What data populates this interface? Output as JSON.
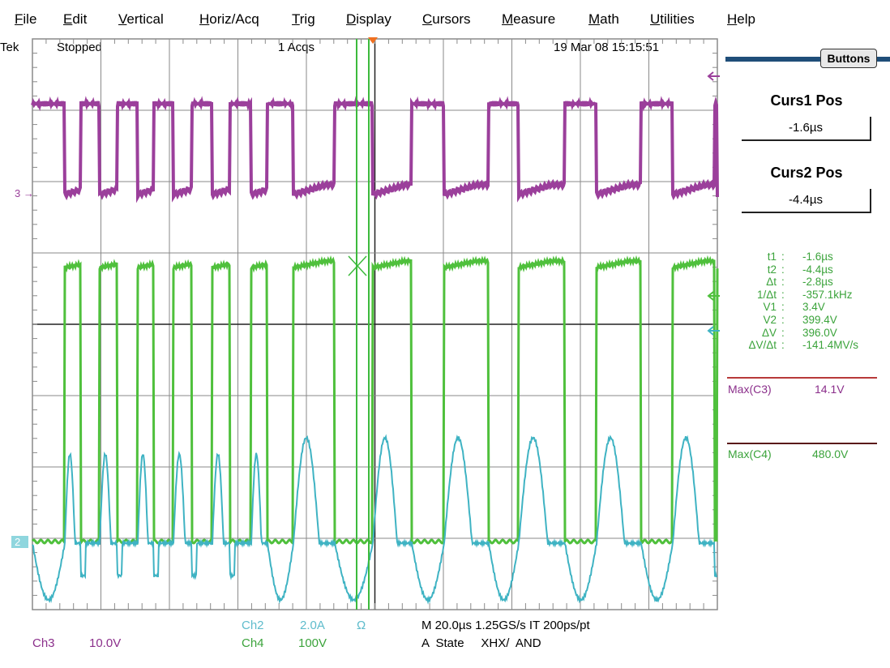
{
  "menu": [
    {
      "label": "File",
      "u": "F",
      "rest": "ile"
    },
    {
      "label": "Edit",
      "u": "E",
      "rest": "dit"
    },
    {
      "label": "Vertical",
      "u": "V",
      "rest": "ertical"
    },
    {
      "label": "Horiz/Acq",
      "u": "H",
      "rest": "oriz/Acq"
    },
    {
      "label": "Trig",
      "u": "T",
      "rest": "rig"
    },
    {
      "label": "Display",
      "u": "D",
      "rest": "isplay"
    },
    {
      "label": "Cursors",
      "u": "C",
      "rest": "ursors"
    },
    {
      "label": "Measure",
      "u": "M",
      "rest": "easure"
    },
    {
      "label": "Math",
      "u": "M",
      "rest": "ath"
    },
    {
      "label": "Utilities",
      "u": "U",
      "rest": "tilities"
    },
    {
      "label": "Help",
      "u": "H",
      "rest": "elp"
    }
  ],
  "status": {
    "brand": "Tek",
    "state": "Stopped",
    "acqs": "1 Acqs",
    "datetime": "19 Mar 08 15:15:51"
  },
  "panel": {
    "buttons_label": "Buttons",
    "curs1_title": "Curs1 Pos",
    "curs1_value": "-1.6µs",
    "curs2_title": "Curs2 Pos",
    "curs2_value": "-4.4µs",
    "readouts": [
      {
        "k": "t1",
        "v": "-1.6µs"
      },
      {
        "k": "t2",
        "v": "-4.4µs"
      },
      {
        "k": "Δt",
        "v": "-2.8µs"
      },
      {
        "k": "1/Δt",
        "v": "-357.1kHz"
      },
      {
        "k": "V1",
        "v": "3.4V"
      },
      {
        "k": "V2",
        "v": "399.4V"
      },
      {
        "k": "ΔV",
        "v": "396.0V"
      },
      {
        "k": "ΔV/Δt",
        "v": "-141.4MV/s"
      }
    ],
    "sep": ":",
    "max_c3_label": "Max(C3)",
    "max_c3_value": "14.1V",
    "max_c4_label": "Max(C4)",
    "max_c4_value": "480.0V"
  },
  "markers": {
    "ch3": "3",
    "ch2": "2"
  },
  "bottom": {
    "ch2_label": "Ch2",
    "ch2_scale": "2.0A",
    "ch2_symbol": "Ω",
    "ch3_label": "Ch3",
    "ch3_scale": "10.0V",
    "ch4_label": "Ch4",
    "ch4_scale": "100V",
    "timebase": "M 20.0µs 1.25GS/s   IT 200ps/pt",
    "trigger": "A  State     XHX/  AND"
  },
  "colors": {
    "ch3": "#9b3f9b",
    "ch4": "#4fc03c",
    "ch2": "#3fb3c3",
    "grid": "#8a8a8a",
    "cursor": "#3cba3c",
    "trig": "#f07020"
  }
}
